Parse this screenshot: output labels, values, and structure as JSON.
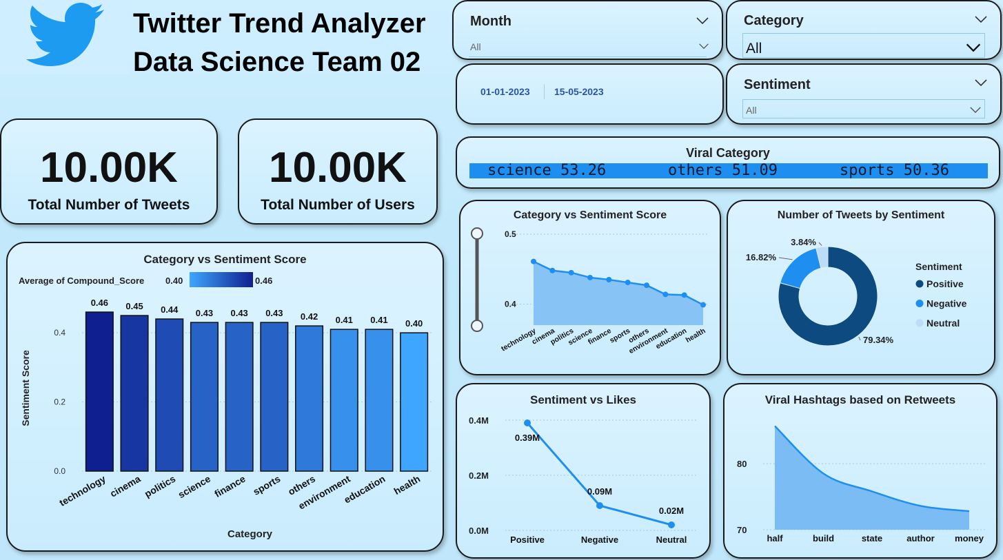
{
  "header": {
    "title": "Twitter Trend Analyzer",
    "subtitle": "Data Science Team 02",
    "logo_icon": "twitter-bird-icon"
  },
  "slicers": {
    "month": {
      "label": "Month",
      "value": "All"
    },
    "category": {
      "label": "Category",
      "value": "All"
    },
    "sentiment": {
      "label": "Sentiment",
      "value": "All"
    },
    "date_range": {
      "start": "01-01-2023",
      "end": "15-05-2023"
    }
  },
  "kpis": [
    {
      "value": "10.00K",
      "label": "Total Number of Tweets"
    },
    {
      "value": "10.00K",
      "label": "Total Number of Users"
    }
  ],
  "viral_category": {
    "title": "Viral Category",
    "items": [
      "science 53.26",
      "others 51.09",
      "sports 50.36"
    ]
  },
  "colors": {
    "accent": "#1e8ff0",
    "dark_blue": "#0c4a80",
    "light_blue": "#bcdcf7",
    "area_fill": "#7cbcf5"
  },
  "chart_data": [
    {
      "id": "bar",
      "type": "bar",
      "title": "Category vs Sentiment Score",
      "legend_title": "Average of Compound_Score",
      "legend_min": "0.40",
      "legend_max": "0.46",
      "xlabel": "Category",
      "ylabel": "Sentiment Score",
      "categories": [
        "technology",
        "cinema",
        "politics",
        "science",
        "finance",
        "sports",
        "others",
        "environment",
        "education",
        "health"
      ],
      "values": [
        0.46,
        0.45,
        0.44,
        0.43,
        0.43,
        0.43,
        0.42,
        0.41,
        0.41,
        0.4
      ],
      "value_labels": [
        "0.46",
        "0.45",
        "0.44",
        "0.43",
        "0.43",
        "0.43",
        "0.42",
        "0.41",
        "0.41",
        "0.40"
      ],
      "yticks": [
        "0.0",
        "0.2",
        "0.4"
      ],
      "ylim": [
        0,
        0.48
      ]
    },
    {
      "id": "area",
      "type": "area",
      "title": "Category vs Sentiment Score",
      "categories": [
        "technology",
        "cinema",
        "politics",
        "science",
        "finance",
        "sports",
        "others",
        "environment",
        "education",
        "health"
      ],
      "values": [
        0.461,
        0.448,
        0.445,
        0.438,
        0.435,
        0.431,
        0.427,
        0.414,
        0.413,
        0.399
      ],
      "yticks": [
        "0.4",
        "0.5"
      ],
      "ylim": [
        0.37,
        0.5
      ]
    },
    {
      "id": "donut",
      "type": "pie",
      "title": "Number of Tweets by Sentiment",
      "legend_title": "Sentiment",
      "labels": [
        "Positive",
        "Negative",
        "Neutral"
      ],
      "values": [
        79.34,
        16.82,
        3.84
      ],
      "value_labels": [
        "79.34%",
        "16.82%",
        "3.84%"
      ],
      "colors": [
        "#0c4a80",
        "#1e8ff0",
        "#bcdcf7"
      ]
    },
    {
      "id": "likes",
      "type": "line",
      "title": "Sentiment vs Likes",
      "categories": [
        "Positive",
        "Negative",
        "Neutral"
      ],
      "values": [
        0.39,
        0.09,
        0.02
      ],
      "value_labels": [
        "0.39M",
        "0.09M",
        "0.02M"
      ],
      "yticks": [
        "0.0M",
        "0.2M",
        "0.4M"
      ],
      "ylim": [
        0,
        0.4
      ]
    },
    {
      "id": "hashtags",
      "type": "area",
      "title": "Viral Hashtags based on Retweets",
      "categories": [
        "half",
        "build",
        "state",
        "author",
        "money"
      ],
      "values": [
        85.7,
        78.5,
        75.8,
        73.6,
        72.8
      ],
      "yticks": [
        "70",
        "80"
      ],
      "ylim": [
        70,
        87
      ]
    }
  ]
}
